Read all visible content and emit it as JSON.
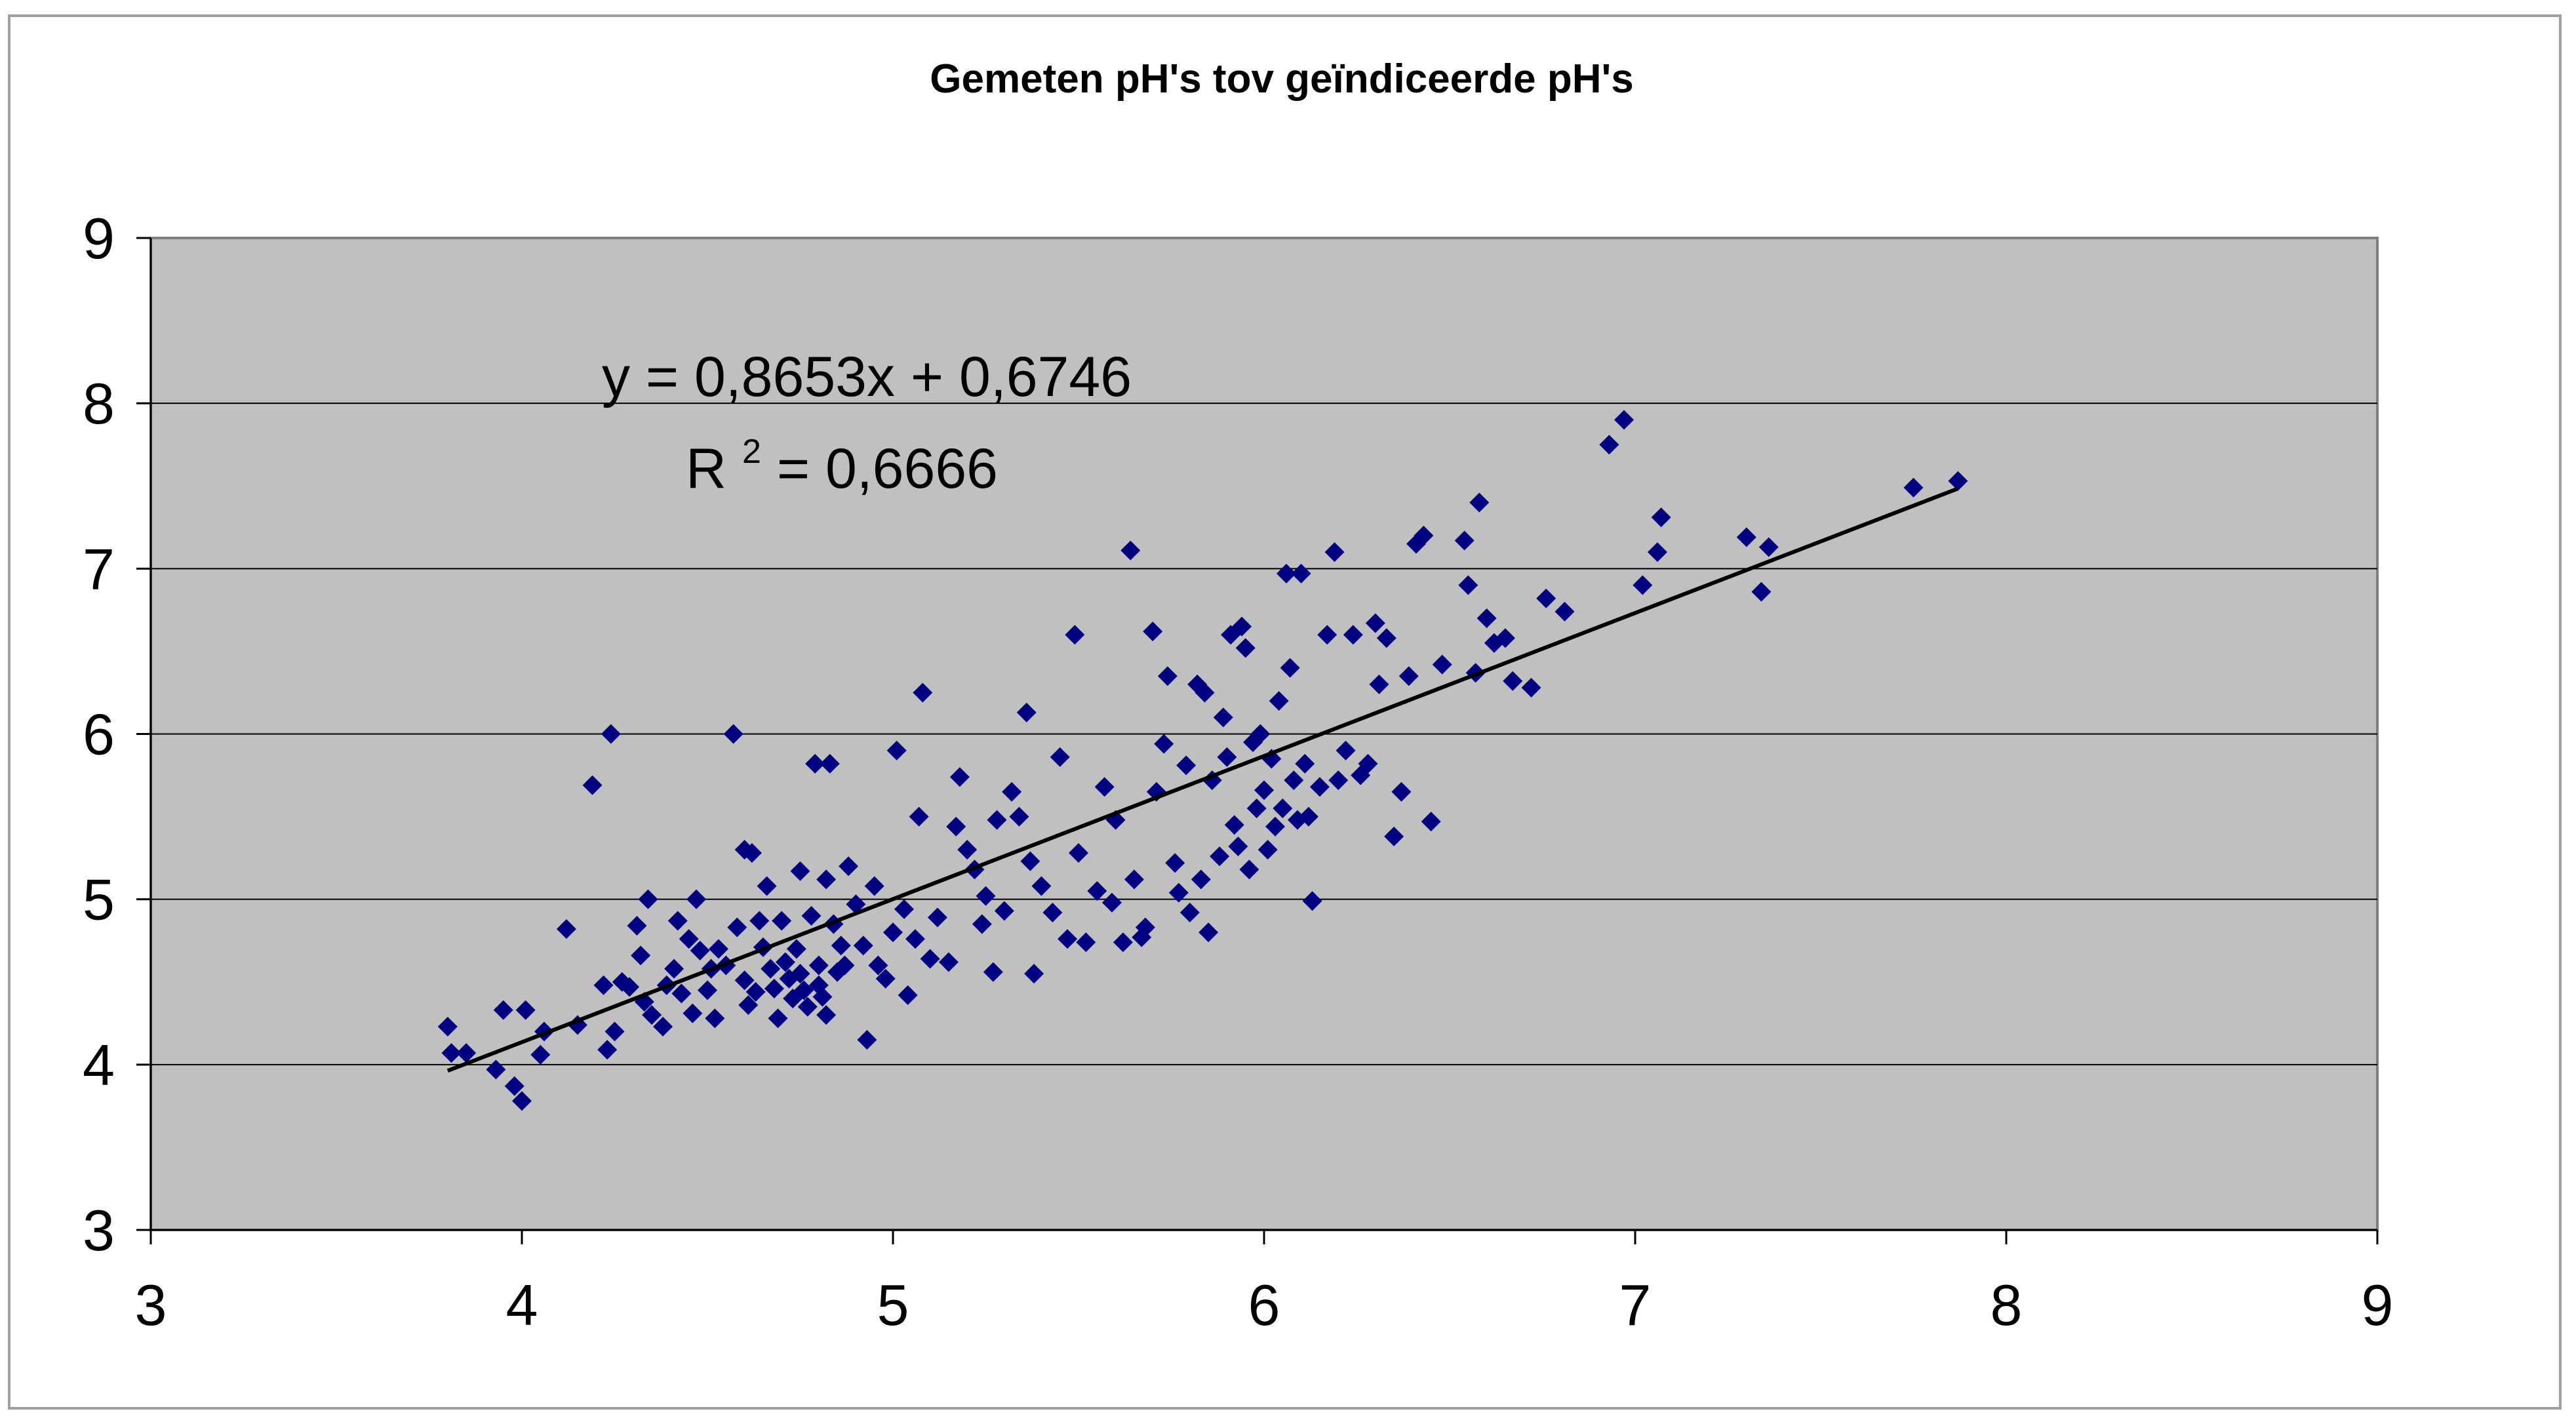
{
  "chart_data": {
    "type": "scatter",
    "title": "Gemeten pH's tov geïndiceerde pH's",
    "xlabel": "",
    "ylabel": "",
    "xlim": [
      3,
      9
    ],
    "ylim": [
      3,
      9
    ],
    "xticks": [
      3,
      4,
      5,
      6,
      7,
      8,
      9
    ],
    "yticks": [
      3,
      4,
      5,
      6,
      7,
      8,
      9
    ],
    "grid": "horizontal",
    "legend": "none",
    "colors": {
      "plot_background": "#c0c0c0",
      "marker": "#000080",
      "trendline": "#000000",
      "gridline": "#000000"
    },
    "trendline": {
      "slope": 0.8653,
      "intercept": 0.6746,
      "x_range": [
        3.8,
        7.87
      ],
      "equation_text": "y = 0,8653x + 0,6746",
      "r2_prefix": "R",
      "r2_sup": "2",
      "r2_suffix": " = 0,6666"
    },
    "series": [
      {
        "marker": "diamond",
        "points": [
          [
            3.8,
            4.23
          ],
          [
            3.81,
            4.07
          ],
          [
            3.85,
            4.07
          ],
          [
            3.93,
            3.97
          ],
          [
            3.95,
            4.33
          ],
          [
            3.98,
            3.87
          ],
          [
            4.0,
            3.78
          ],
          [
            4.01,
            4.33
          ],
          [
            4.05,
            4.06
          ],
          [
            4.06,
            4.2
          ],
          [
            4.12,
            4.82
          ],
          [
            4.15,
            4.24
          ],
          [
            4.19,
            5.69
          ],
          [
            4.22,
            4.48
          ],
          [
            4.23,
            4.09
          ],
          [
            4.24,
            6.0
          ],
          [
            4.25,
            4.2
          ],
          [
            4.27,
            4.5
          ],
          [
            4.29,
            4.47
          ],
          [
            4.31,
            4.84
          ],
          [
            4.32,
            4.66
          ],
          [
            4.33,
            4.38
          ],
          [
            4.34,
            5.0
          ],
          [
            4.35,
            4.3
          ],
          [
            4.38,
            4.23
          ],
          [
            4.39,
            4.48
          ],
          [
            4.41,
            4.58
          ],
          [
            4.42,
            4.87
          ],
          [
            4.43,
            4.43
          ],
          [
            4.45,
            4.76
          ],
          [
            4.46,
            4.31
          ],
          [
            4.47,
            5.0
          ],
          [
            4.48,
            4.69
          ],
          [
            4.5,
            4.45
          ],
          [
            4.51,
            4.58
          ],
          [
            4.52,
            4.28
          ],
          [
            4.53,
            4.7
          ],
          [
            4.55,
            4.6
          ],
          [
            4.57,
            6.0
          ],
          [
            4.58,
            4.83
          ],
          [
            4.6,
            5.3
          ],
          [
            4.6,
            4.51
          ],
          [
            4.61,
            4.36
          ],
          [
            4.62,
            5.28
          ],
          [
            4.63,
            4.44
          ],
          [
            4.64,
            4.87
          ],
          [
            4.65,
            4.71
          ],
          [
            4.66,
            5.08
          ],
          [
            4.67,
            4.58
          ],
          [
            4.68,
            4.46
          ],
          [
            4.69,
            4.28
          ],
          [
            4.7,
            4.87
          ],
          [
            4.71,
            4.62
          ],
          [
            4.72,
            4.52
          ],
          [
            4.73,
            4.4
          ],
          [
            4.74,
            4.7
          ],
          [
            4.75,
            5.17
          ],
          [
            4.75,
            4.55
          ],
          [
            4.76,
            4.45
          ],
          [
            4.77,
            4.35
          ],
          [
            4.78,
            4.9
          ],
          [
            4.79,
            5.82
          ],
          [
            4.8,
            4.6
          ],
          [
            4.8,
            4.48
          ],
          [
            4.81,
            4.41
          ],
          [
            4.82,
            4.3
          ],
          [
            4.82,
            5.12
          ],
          [
            4.83,
            5.82
          ],
          [
            4.84,
            4.85
          ],
          [
            4.85,
            4.56
          ],
          [
            4.86,
            4.72
          ],
          [
            4.87,
            4.6
          ],
          [
            4.88,
            5.2
          ],
          [
            4.9,
            4.97
          ],
          [
            4.92,
            4.72
          ],
          [
            4.93,
            4.15
          ],
          [
            4.95,
            5.08
          ],
          [
            4.96,
            4.6
          ],
          [
            4.98,
            4.52
          ],
          [
            5.0,
            4.8
          ],
          [
            5.01,
            5.9
          ],
          [
            5.03,
            4.94
          ],
          [
            5.04,
            4.42
          ],
          [
            5.06,
            4.76
          ],
          [
            5.07,
            5.5
          ],
          [
            5.08,
            6.25
          ],
          [
            5.1,
            4.64
          ],
          [
            5.12,
            4.89
          ],
          [
            5.15,
            4.62
          ],
          [
            5.17,
            5.44
          ],
          [
            5.18,
            5.74
          ],
          [
            5.2,
            5.3
          ],
          [
            5.22,
            5.18
          ],
          [
            5.24,
            4.85
          ],
          [
            5.25,
            5.02
          ],
          [
            5.27,
            4.56
          ],
          [
            5.28,
            5.48
          ],
          [
            5.3,
            4.93
          ],
          [
            5.32,
            5.65
          ],
          [
            5.34,
            5.5
          ],
          [
            5.36,
            6.13
          ],
          [
            5.37,
            5.23
          ],
          [
            5.38,
            4.55
          ],
          [
            5.4,
            5.08
          ],
          [
            5.43,
            4.92
          ],
          [
            5.45,
            5.86
          ],
          [
            5.47,
            4.76
          ],
          [
            5.49,
            6.6
          ],
          [
            5.5,
            5.28
          ],
          [
            5.52,
            4.74
          ],
          [
            5.55,
            5.05
          ],
          [
            5.57,
            5.68
          ],
          [
            5.59,
            4.98
          ],
          [
            5.6,
            5.48
          ],
          [
            5.62,
            4.74
          ],
          [
            5.64,
            7.11
          ],
          [
            5.65,
            5.12
          ],
          [
            5.67,
            4.77
          ],
          [
            5.68,
            4.83
          ],
          [
            5.7,
            6.62
          ],
          [
            5.71,
            5.65
          ],
          [
            5.73,
            5.94
          ],
          [
            5.74,
            6.35
          ],
          [
            5.76,
            5.22
          ],
          [
            5.77,
            5.04
          ],
          [
            5.79,
            5.81
          ],
          [
            5.8,
            4.92
          ],
          [
            5.82,
            6.3
          ],
          [
            5.83,
            5.12
          ],
          [
            5.84,
            6.25
          ],
          [
            5.85,
            4.8
          ],
          [
            5.86,
            5.72
          ],
          [
            5.88,
            5.26
          ],
          [
            5.89,
            6.1
          ],
          [
            5.9,
            5.86
          ],
          [
            5.91,
            6.6
          ],
          [
            5.92,
            5.45
          ],
          [
            5.93,
            5.32
          ],
          [
            5.94,
            6.65
          ],
          [
            5.95,
            6.52
          ],
          [
            5.96,
            5.18
          ],
          [
            5.97,
            5.95
          ],
          [
            5.98,
            5.55
          ],
          [
            5.99,
            6.0
          ],
          [
            6.0,
            5.66
          ],
          [
            6.01,
            5.3
          ],
          [
            6.02,
            5.85
          ],
          [
            6.03,
            5.44
          ],
          [
            6.04,
            6.2
          ],
          [
            6.05,
            5.55
          ],
          [
            6.06,
            6.97
          ],
          [
            6.07,
            6.4
          ],
          [
            6.08,
            5.72
          ],
          [
            6.09,
            5.48
          ],
          [
            6.1,
            6.97
          ],
          [
            6.11,
            5.82
          ],
          [
            6.12,
            5.5
          ],
          [
            6.13,
            4.99
          ],
          [
            6.15,
            5.68
          ],
          [
            6.17,
            6.6
          ],
          [
            6.19,
            7.1
          ],
          [
            6.2,
            5.72
          ],
          [
            6.22,
            5.9
          ],
          [
            6.24,
            6.6
          ],
          [
            6.26,
            5.75
          ],
          [
            6.28,
            5.82
          ],
          [
            6.3,
            6.67
          ],
          [
            6.31,
            6.3
          ],
          [
            6.33,
            6.58
          ],
          [
            6.35,
            5.38
          ],
          [
            6.37,
            5.65
          ],
          [
            6.39,
            6.35
          ],
          [
            6.41,
            7.15
          ],
          [
            6.43,
            7.2
          ],
          [
            6.45,
            5.47
          ],
          [
            6.48,
            6.42
          ],
          [
            6.54,
            7.17
          ],
          [
            6.55,
            6.9
          ],
          [
            6.57,
            6.37
          ],
          [
            6.58,
            7.4
          ],
          [
            6.6,
            6.7
          ],
          [
            6.62,
            6.55
          ],
          [
            6.65,
            6.58
          ],
          [
            6.67,
            6.32
          ],
          [
            6.72,
            6.28
          ],
          [
            6.76,
            6.82
          ],
          [
            6.81,
            6.74
          ],
          [
            6.93,
            7.75
          ],
          [
            6.97,
            7.9
          ],
          [
            7.02,
            6.9
          ],
          [
            7.06,
            7.1
          ],
          [
            7.07,
            7.31
          ],
          [
            7.3,
            7.19
          ],
          [
            7.34,
            6.86
          ],
          [
            7.36,
            7.13
          ],
          [
            7.75,
            7.49
          ],
          [
            7.87,
            7.53
          ]
        ]
      }
    ]
  }
}
